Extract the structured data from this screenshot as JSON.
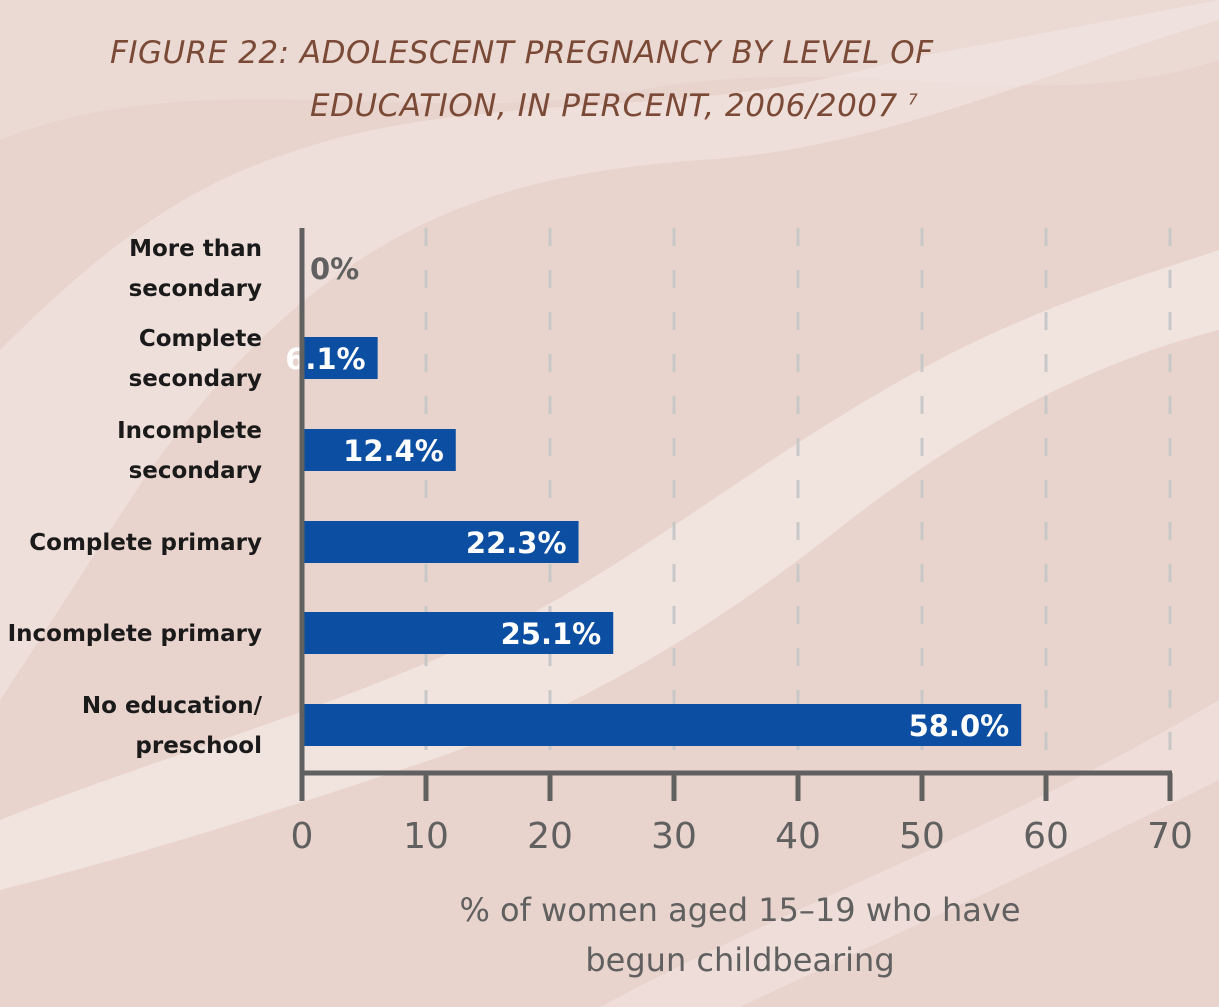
{
  "title": {
    "line1": "FIGURE 22: ADOLESCENT PREGNANCY BY LEVEL OF",
    "line2": "EDUCATION, IN PERCENT, 2006/2007",
    "footnote": "7"
  },
  "colors": {
    "background": "#e8d3cd",
    "bar": "#0b4ea2",
    "axis": "#606060",
    "title": "#7a4a36"
  },
  "chart_data": {
    "type": "bar",
    "orientation": "horizontal",
    "categories": [
      [
        "More than",
        "secondary"
      ],
      [
        "Complete",
        "secondary"
      ],
      [
        "Incomplete",
        "secondary"
      ],
      [
        "Complete primary"
      ],
      [
        "Incomplete primary"
      ],
      [
        "No education/",
        "preschool"
      ]
    ],
    "values": [
      0,
      6.1,
      12.4,
      22.3,
      25.1,
      58.0
    ],
    "value_labels": [
      "0%",
      "6.1%",
      "12.4%",
      "22.3%",
      "25.1%",
      "58.0%"
    ],
    "xlim": [
      0,
      70
    ],
    "xticks": [
      0,
      10,
      20,
      30,
      40,
      50,
      60,
      70
    ],
    "xlabel": [
      "% of women aged 15–19 who have",
      "begun childbearing"
    ],
    "grid": "vertical dashed"
  }
}
